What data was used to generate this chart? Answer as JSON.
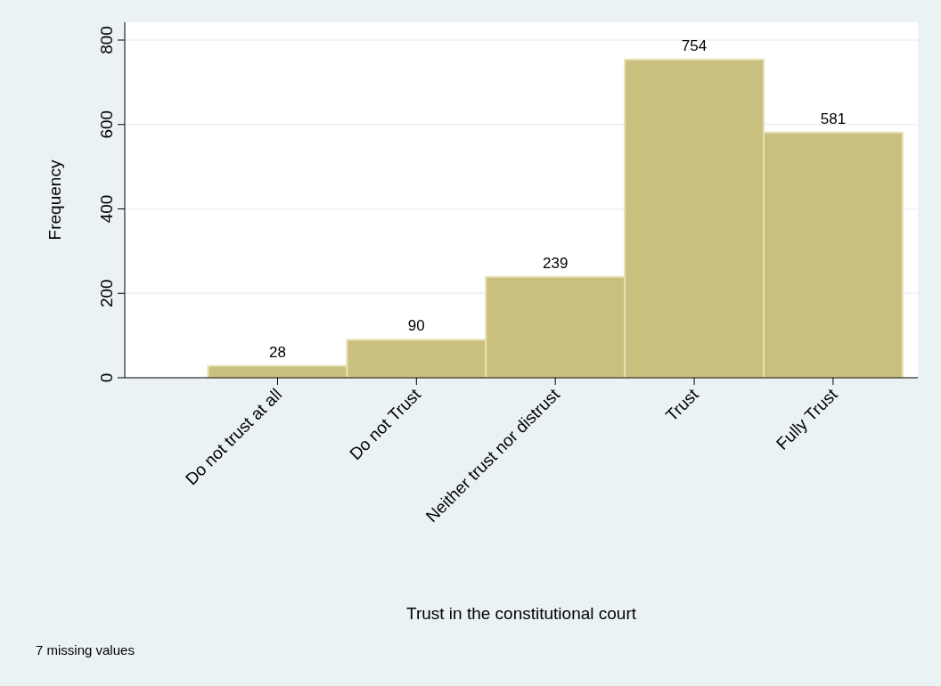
{
  "chart_data": {
    "type": "bar",
    "xlabel": "Trust in the constitutional court",
    "ylabel": "Frequency",
    "categories": [
      "Do not trust at all",
      "Do not Trust",
      "Neither trust nor distrust",
      "Trust",
      "Fully Trust"
    ],
    "values": [
      28,
      90,
      239,
      754,
      581
    ],
    "color": "#c9c07f",
    "ylim": [
      0,
      800
    ],
    "yticks": [
      0,
      200,
      400,
      600,
      800
    ],
    "grid": "y",
    "data_labels": true,
    "annotations": [
      "7 missing values"
    ]
  }
}
